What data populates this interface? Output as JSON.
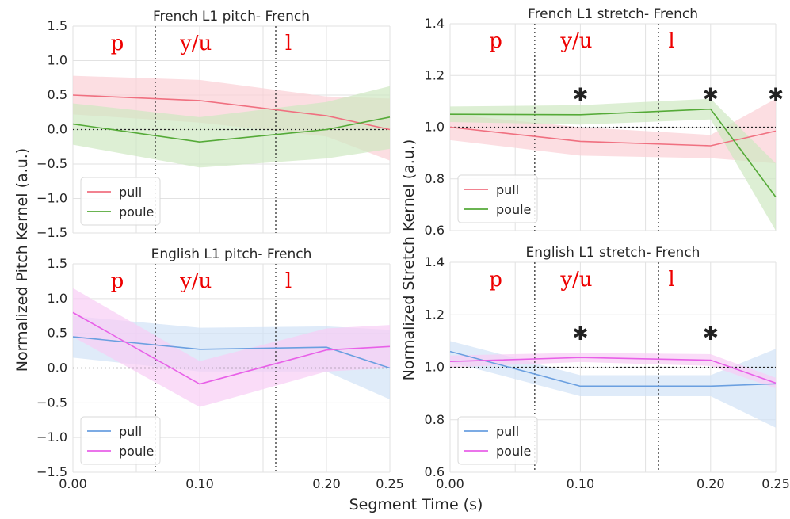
{
  "figure": {
    "xlabel": "Segment Time (s)",
    "ylabel_left": "Normalized Pitch Kernel (a.u.)",
    "ylabel_right": "Normalized Stretch Kernel (a.u.)"
  },
  "chart_data": [
    {
      "type": "line",
      "title": "French L1 pitch- French",
      "x": [
        0.0,
        0.1,
        0.2,
        0.25
      ],
      "xlim": [
        0.0,
        0.25
      ],
      "xticks": [
        0.0,
        0.1,
        0.2,
        0.25
      ],
      "xtick_labels": [
        "0.00",
        "0.10",
        "0.20",
        "0.25"
      ],
      "ylim": [
        -1.5,
        1.5
      ],
      "yticks": [
        -1.5,
        -1.0,
        -0.5,
        0.0,
        0.5,
        1.0,
        1.5
      ],
      "ytick_labels": [
        "−1.5",
        "−1.0",
        "−0.5",
        "0.0",
        "0.5",
        "1.0",
        "1.5"
      ],
      "reference_y": 0.0,
      "segment_boundaries": [
        0.065,
        0.16
      ],
      "segment_labels": [
        {
          "text": "p",
          "x": 0.035
        },
        {
          "text": "y/u",
          "x": 0.097
        },
        {
          "text": "l",
          "x": 0.17
        }
      ],
      "significance_x": [],
      "series": [
        {
          "name": "pull",
          "color": "#f07080",
          "band": "#fbd0d6",
          "values": [
            0.5,
            0.42,
            0.2,
            0.0
          ],
          "lower": [
            0.22,
            0.1,
            -0.1,
            -0.45
          ],
          "upper": [
            0.78,
            0.72,
            0.48,
            0.45
          ]
        },
        {
          "name": "poule",
          "color": "#55aa38",
          "band": "#cfe8c2",
          "values": [
            0.08,
            -0.18,
            0.0,
            0.18
          ],
          "lower": [
            -0.22,
            -0.55,
            -0.42,
            -0.28
          ],
          "upper": [
            0.38,
            0.18,
            0.4,
            0.63
          ]
        }
      ],
      "legend": {
        "position": "lower-left",
        "entries": [
          "pull",
          "poule"
        ]
      }
    },
    {
      "type": "line",
      "title": "French L1 stretch- French",
      "x": [
        0.0,
        0.1,
        0.2,
        0.25
      ],
      "xlim": [
        0.0,
        0.25
      ],
      "xticks": [
        0.0,
        0.1,
        0.2,
        0.25
      ],
      "xtick_labels": [
        "0.00",
        "0.10",
        "0.20",
        "0.25"
      ],
      "ylim": [
        0.6,
        1.4
      ],
      "yticks": [
        0.6,
        0.8,
        1.0,
        1.2,
        1.4
      ],
      "ytick_labels": [
        "0.6",
        "0.8",
        "1.0",
        "1.2",
        "1.4"
      ],
      "reference_y": 1.0,
      "segment_boundaries": [
        0.065,
        0.16
      ],
      "segment_labels": [
        {
          "text": "p",
          "x": 0.035
        },
        {
          "text": "y/u",
          "x": 0.097
        },
        {
          "text": "l",
          "x": 0.17
        }
      ],
      "significance_x": [
        0.1,
        0.2,
        0.25
      ],
      "series": [
        {
          "name": "pull",
          "color": "#f07080",
          "band": "#fbd0d6",
          "values": [
            1.0,
            0.945,
            0.928,
            0.985
          ],
          "lower": [
            0.95,
            0.89,
            0.88,
            0.86
          ],
          "upper": [
            1.05,
            1.0,
            0.97,
            1.11
          ]
        },
        {
          "name": "poule",
          "color": "#55aa38",
          "band": "#cfe8c2",
          "values": [
            1.05,
            1.048,
            1.07,
            0.73
          ],
          "lower": [
            1.02,
            1.01,
            1.03,
            0.6
          ],
          "upper": [
            1.08,
            1.085,
            1.11,
            0.86
          ]
        }
      ],
      "legend": {
        "position": "lower-left",
        "entries": [
          "pull",
          "poule"
        ]
      }
    },
    {
      "type": "line",
      "title": "English L1 pitch- French",
      "x": [
        0.0,
        0.1,
        0.2,
        0.25
      ],
      "xlim": [
        0.0,
        0.25
      ],
      "xticks": [
        0.0,
        0.1,
        0.2,
        0.25
      ],
      "xtick_labels": [
        "0.00",
        "0.10",
        "0.20",
        "0.25"
      ],
      "ylim": [
        -1.5,
        1.5
      ],
      "yticks": [
        -1.5,
        -1.0,
        -0.5,
        0.0,
        0.5,
        1.0,
        1.5
      ],
      "ytick_labels": [
        "−1.5",
        "−1.0",
        "−0.5",
        "0.0",
        "0.5",
        "1.0",
        "1.5"
      ],
      "reference_y": 0.0,
      "segment_boundaries": [
        0.065,
        0.16
      ],
      "segment_labels": [
        {
          "text": "p",
          "x": 0.035
        },
        {
          "text": "y/u",
          "x": 0.097
        },
        {
          "text": "l",
          "x": 0.17
        }
      ],
      "significance_x": [],
      "series": [
        {
          "name": "pull",
          "color": "#6a9fe0",
          "band": "#d2e2f7",
          "values": [
            0.45,
            0.27,
            0.3,
            0.0
          ],
          "lower": [
            0.15,
            -0.05,
            -0.05,
            -0.45
          ],
          "upper": [
            0.75,
            0.58,
            0.6,
            0.55
          ]
        },
        {
          "name": "poule",
          "color": "#e860e8",
          "band": "#f8cdf5",
          "values": [
            0.8,
            -0.23,
            0.26,
            0.31
          ],
          "lower": [
            0.45,
            -0.56,
            -0.05,
            0.0
          ],
          "upper": [
            1.15,
            0.1,
            0.57,
            0.62
          ]
        }
      ],
      "legend": {
        "position": "lower-left",
        "entries": [
          "pull",
          "poule"
        ]
      }
    },
    {
      "type": "line",
      "title": "English L1 stretch- French",
      "x": [
        0.0,
        0.1,
        0.2,
        0.25
      ],
      "xlim": [
        0.0,
        0.25
      ],
      "xticks": [
        0.0,
        0.1,
        0.2,
        0.25
      ],
      "xtick_labels": [
        "0.00",
        "0.10",
        "0.20",
        "0.25"
      ],
      "ylim": [
        0.6,
        1.4
      ],
      "yticks": [
        0.6,
        0.8,
        1.0,
        1.2,
        1.4
      ],
      "ytick_labels": [
        "0.6",
        "0.8",
        "1.0",
        "1.2",
        "1.4"
      ],
      "reference_y": 1.0,
      "segment_boundaries": [
        0.065,
        0.16
      ],
      "segment_labels": [
        {
          "text": "p",
          "x": 0.035
        },
        {
          "text": "y/u",
          "x": 0.097
        },
        {
          "text": "l",
          "x": 0.17
        }
      ],
      "significance_x": [
        0.1,
        0.2
      ],
      "series": [
        {
          "name": "pull",
          "color": "#6a9fe0",
          "band": "#d2e2f7",
          "values": [
            1.06,
            0.928,
            0.928,
            0.937
          ],
          "lower": [
            1.02,
            0.89,
            0.89,
            0.77
          ],
          "upper": [
            1.1,
            0.97,
            0.97,
            1.07
          ]
        },
        {
          "name": "poule",
          "color": "#e860e8",
          "band": "#f8cdf5",
          "values": [
            1.022,
            1.037,
            1.027,
            0.94
          ],
          "lower": [
            1.0,
            1.02,
            1.005,
            0.92
          ],
          "upper": [
            1.045,
            1.055,
            1.05,
            0.96
          ]
        }
      ],
      "legend": {
        "position": "lower-left",
        "entries": [
          "pull",
          "poule"
        ]
      }
    }
  ]
}
